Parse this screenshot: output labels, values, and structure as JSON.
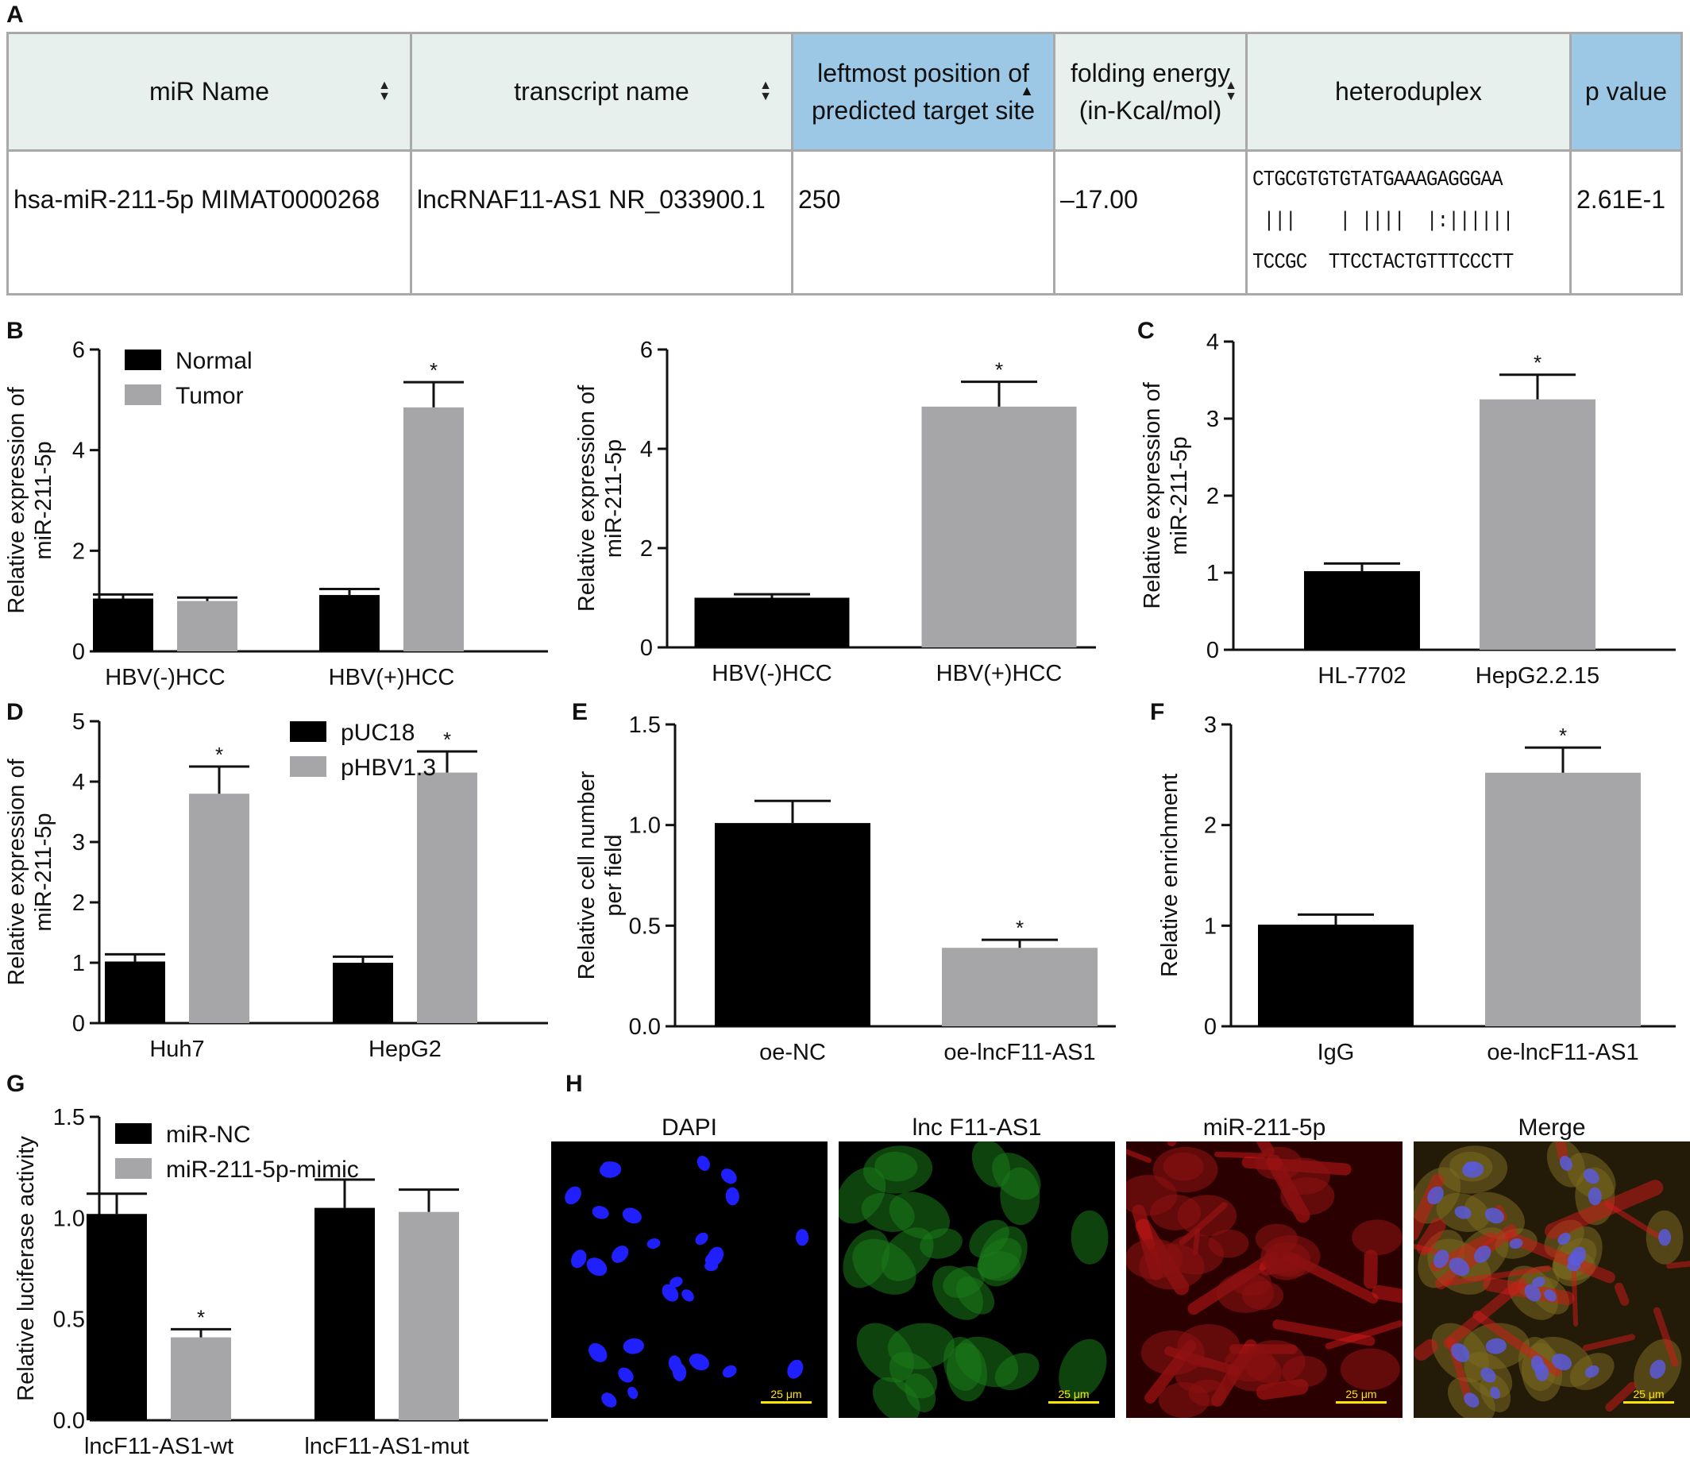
{
  "panel_letters": {
    "A": "A",
    "B": "B",
    "C": "C",
    "D": "D",
    "E": "E",
    "F": "F",
    "G": "G",
    "H": "H"
  },
  "table": {
    "headers": [
      "miR Name",
      "transcript name",
      "leftmost position of predicted target site",
      "folding energy (in-Kcal/mol)",
      "heteroduplex",
      "p value"
    ],
    "header_lines": {
      "col3_line1": "leftmost position of",
      "col3_line2": "predicted target site",
      "col4_line1": "folding energy",
      "col4_line2": "(in-Kcal/mol)"
    },
    "row": {
      "mir_name": "hsa-miR-211-5p MIMAT0000268",
      "transcript": "lncRNAF11-AS1 NR_033900.1",
      "position": "250",
      "energy": "–17.00",
      "hetero_top": "CTGCGTGTGTATGAAAGAGGGAA",
      "hetero_mid": " |||    | ||||  |:||||||",
      "hetero_bottom": "TCCGC  TTCCTACTGTTTCCCTT",
      "p_value": "2.61E-1"
    },
    "colors": {
      "header_bg": "#e8f0ee",
      "sorted_header_bg": "#9cc8e6",
      "border": "#a9a9a9"
    }
  },
  "chart_data": [
    {
      "id": "B1",
      "type": "bar",
      "categories": [
        "HBV(-)HCC",
        "HBV(+)HCC"
      ],
      "series": [
        {
          "name": "Normal",
          "color": "#000000",
          "values": [
            1.05,
            1.12
          ],
          "errors": [
            0.08,
            0.12
          ]
        },
        {
          "name": "Tumor",
          "color": "#a6a6a8",
          "values": [
            1.0,
            4.85
          ],
          "errors": [
            0.07,
            0.5
          ]
        }
      ],
      "significance": [
        [
          false,
          false
        ],
        [
          false,
          true
        ]
      ],
      "ylabel": [
        "Relative expression of",
        "miR-211-5p"
      ],
      "ylim": [
        0,
        6
      ],
      "yticks": [
        "0",
        "2",
        "4",
        "6"
      ],
      "legend": "top-left"
    },
    {
      "id": "B2",
      "type": "bar",
      "categories": [
        "HBV(-)HCC",
        "HBV(+)HCC"
      ],
      "series": [
        {
          "colors": [
            "#000000",
            "#a6a6a8"
          ],
          "values": [
            1.0,
            4.85
          ],
          "errors": [
            0.07,
            0.5
          ]
        }
      ],
      "significance": [
        false,
        true
      ],
      "ylabel": [
        "Relative expression of",
        "miR-211-5p"
      ],
      "ylim": [
        0,
        6
      ],
      "yticks": [
        "0",
        "2",
        "4",
        "6"
      ]
    },
    {
      "id": "C",
      "type": "bar",
      "categories": [
        "HL-7702",
        "HepG2.2.15"
      ],
      "series": [
        {
          "colors": [
            "#000000",
            "#a6a6a8"
          ],
          "values": [
            1.02,
            3.25
          ],
          "errors": [
            0.1,
            0.32
          ]
        }
      ],
      "significance": [
        false,
        true
      ],
      "ylabel": [
        "Relative expression of",
        "miR-211-5p"
      ],
      "ylim": [
        0,
        4
      ],
      "yticks": [
        "0",
        "1",
        "2",
        "3",
        "4"
      ]
    },
    {
      "id": "D",
      "type": "bar",
      "categories": [
        "Huh7",
        "HepG2"
      ],
      "series": [
        {
          "name": "pUC18",
          "color": "#000000",
          "values": [
            1.02,
            1.0
          ],
          "errors": [
            0.12,
            0.1
          ]
        },
        {
          "name": "pHBV1.3",
          "color": "#a6a6a8",
          "values": [
            3.8,
            4.15
          ],
          "errors": [
            0.45,
            0.35
          ]
        }
      ],
      "significance": [
        [
          false,
          false
        ],
        [
          true,
          true
        ]
      ],
      "ylabel": [
        "Relative expression of",
        "miR-211-5p"
      ],
      "ylim": [
        0,
        5
      ],
      "yticks": [
        "0",
        "1",
        "2",
        "3",
        "4",
        "5"
      ],
      "legend": "top"
    },
    {
      "id": "E",
      "type": "bar",
      "categories": [
        "oe-NC",
        "oe-lncF11-AS1"
      ],
      "series": [
        {
          "colors": [
            "#000000",
            "#a6a6a8"
          ],
          "values": [
            1.01,
            0.39
          ],
          "errors": [
            0.11,
            0.04
          ]
        }
      ],
      "significance": [
        false,
        true
      ],
      "ylabel": [
        "Relative cell number",
        "per field"
      ],
      "ylim": [
        0,
        1.5
      ],
      "yticks": [
        "0.0",
        "0.5",
        "1.0",
        "1.5"
      ]
    },
    {
      "id": "F",
      "type": "bar",
      "categories": [
        "IgG",
        "oe-lncF11-AS1"
      ],
      "series": [
        {
          "colors": [
            "#000000",
            "#a6a6a8"
          ],
          "values": [
            1.01,
            2.52
          ],
          "errors": [
            0.1,
            0.25
          ]
        }
      ],
      "significance": [
        false,
        true
      ],
      "ylabel": [
        "Relative enrichment"
      ],
      "ylim": [
        0,
        3
      ],
      "yticks": [
        "0",
        "1",
        "2",
        "3"
      ]
    },
    {
      "id": "G",
      "type": "bar",
      "categories": [
        "lncF11-AS1-wt",
        "lncF11-AS1-mut"
      ],
      "series": [
        {
          "name": "miR-NC",
          "color": "#000000",
          "values": [
            1.02,
            1.05
          ],
          "errors": [
            0.1,
            0.14
          ]
        },
        {
          "name": "miR-211-5p-mimic",
          "color": "#a6a6a8",
          "values": [
            0.41,
            1.03
          ],
          "errors": [
            0.04,
            0.11
          ]
        }
      ],
      "significance": [
        [
          false,
          false
        ],
        [
          true,
          false
        ]
      ],
      "ylabel": [
        "Relative luciferase activity"
      ],
      "ylim": [
        0,
        1.5
      ],
      "yticks": [
        "0.0",
        "0.5",
        "1.0",
        "1.5"
      ],
      "legend": "top-left"
    }
  ],
  "panel_H": {
    "labels": [
      "DAPI",
      "lnc F11-AS1",
      "miR-211-5p",
      "Merge"
    ],
    "scale_bar": "25 μm",
    "colors": {
      "dapi": "#2020ff",
      "lnc": "#1a7a1a",
      "mir": "#d41a1a"
    }
  }
}
